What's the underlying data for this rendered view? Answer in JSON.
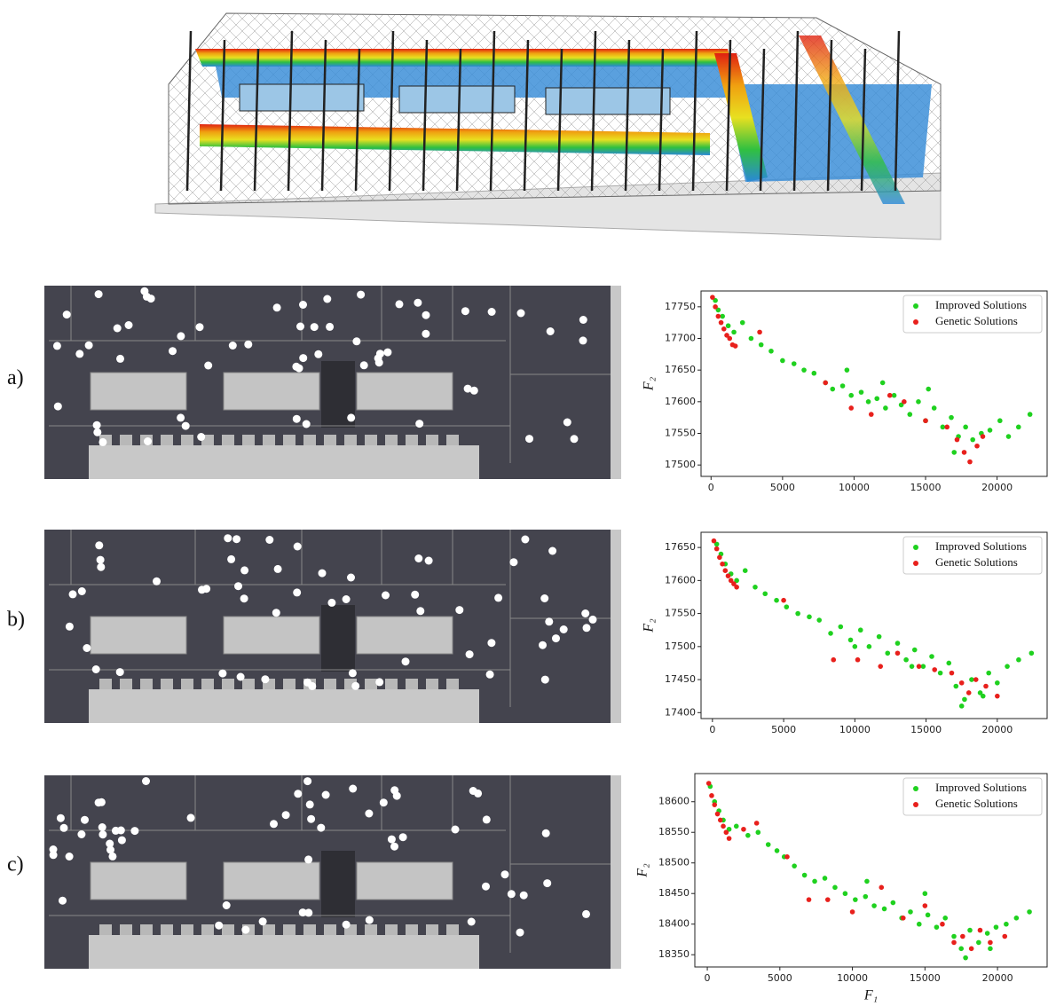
{
  "chart_data": [
    {
      "type": "scatter",
      "panel_label": "a)",
      "ylabel": "F₂",
      "xlim": [
        -700,
        23500
      ],
      "xticks": [
        0,
        5000,
        10000,
        15000,
        20000
      ],
      "ylim": [
        17482,
        17775
      ],
      "yticks": [
        17500,
        17550,
        17600,
        17650,
        17700,
        17750
      ],
      "legend": "upper right",
      "series": [
        {
          "name": "Improved Solutions",
          "color": "#1fd11f",
          "x": [
            300,
            500,
            800,
            1200,
            1600,
            2200,
            2800,
            3500,
            4200,
            5000,
            5800,
            6500,
            7200,
            8000,
            8500,
            9200,
            9800,
            10500,
            11000,
            11600,
            12200,
            12800,
            13300,
            13900,
            14500,
            15000,
            15600,
            16200,
            16800,
            17300,
            17800,
            18300,
            18900,
            19500,
            20200,
            20800,
            21500,
            22300,
            12000,
            15200,
            9500,
            17000
          ],
          "values": [
            17760,
            17745,
            17735,
            17720,
            17710,
            17725,
            17700,
            17690,
            17680,
            17665,
            17660,
            17650,
            17645,
            17630,
            17620,
            17625,
            17610,
            17615,
            17600,
            17605,
            17590,
            17610,
            17595,
            17580,
            17600,
            17570,
            17590,
            17560,
            17575,
            17545,
            17560,
            17540,
            17550,
            17555,
            17570,
            17545,
            17560,
            17580,
            17630,
            17620,
            17650,
            17520
          ]
        },
        {
          "name": "Genetic Solutions",
          "color": "#e8201c",
          "x": [
            100,
            300,
            500,
            700,
            900,
            1100,
            1300,
            1500,
            1700,
            3400,
            8000,
            9800,
            11200,
            12500,
            13500,
            15000,
            16500,
            17200,
            17700,
            18100,
            18600,
            19000
          ],
          "values": [
            17765,
            17750,
            17735,
            17725,
            17715,
            17705,
            17700,
            17690,
            17688,
            17710,
            17630,
            17590,
            17580,
            17610,
            17600,
            17570,
            17560,
            17540,
            17520,
            17505,
            17530,
            17545
          ]
        }
      ]
    },
    {
      "type": "scatter",
      "panel_label": "b)",
      "ylabel": "F₂",
      "xlim": [
        -800,
        23500
      ],
      "xticks": [
        0,
        5000,
        10000,
        15000,
        20000
      ],
      "ylim": [
        17391,
        17673
      ],
      "yticks": [
        17400,
        17450,
        17500,
        17550,
        17600,
        17650
      ],
      "legend": "upper right",
      "series": [
        {
          "name": "Improved Solutions",
          "color": "#1fd11f",
          "x": [
            300,
            600,
            900,
            1300,
            1700,
            2300,
            3000,
            3700,
            4500,
            5200,
            6000,
            6800,
            7500,
            8300,
            9000,
            9700,
            10400,
            11000,
            11700,
            12300,
            13000,
            13600,
            14200,
            14800,
            15400,
            16000,
            16600,
            17100,
            17700,
            18200,
            18800,
            19400,
            20000,
            20700,
            21500,
            22400,
            10000,
            14000,
            17500,
            19000
          ],
          "values": [
            17655,
            17640,
            17625,
            17610,
            17600,
            17615,
            17590,
            17580,
            17570,
            17560,
            17550,
            17545,
            17540,
            17520,
            17530,
            17510,
            17525,
            17500,
            17515,
            17490,
            17505,
            17480,
            17495,
            17470,
            17485,
            17460,
            17475,
            17440,
            17420,
            17450,
            17430,
            17460,
            17445,
            17470,
            17480,
            17490,
            17500,
            17470,
            17410,
            17425
          ]
        },
        {
          "name": "Genetic Solutions",
          "color": "#e8201c",
          "x": [
            100,
            300,
            500,
            700,
            900,
            1100,
            1300,
            1500,
            1700,
            5000,
            8500,
            10200,
            11800,
            13000,
            14500,
            15600,
            16800,
            17500,
            18000,
            18500,
            19200,
            20000
          ],
          "values": [
            17660,
            17648,
            17635,
            17625,
            17615,
            17607,
            17600,
            17595,
            17590,
            17570,
            17480,
            17480,
            17470,
            17490,
            17470,
            17465,
            17460,
            17445,
            17430,
            17450,
            17440,
            17425
          ]
        }
      ]
    },
    {
      "type": "scatter",
      "panel_label": "c)",
      "ylabel": "F₂",
      "xlabel": "F₁",
      "xlim": [
        -860,
        23420
      ],
      "xticks": [
        0,
        5000,
        10000,
        15000,
        20000
      ],
      "ylim": [
        18330,
        18646
      ],
      "yticks": [
        18350,
        18400,
        18450,
        18500,
        18550,
        18600
      ],
      "legend": "upper right",
      "series": [
        {
          "name": "Improved Solutions",
          "color": "#1fd11f",
          "x": [
            200,
            500,
            800,
            1100,
            1500,
            2000,
            2800,
            3500,
            4200,
            4800,
            5300,
            6000,
            6700,
            7400,
            8100,
            8800,
            9500,
            10200,
            10900,
            11500,
            12200,
            12800,
            13400,
            14000,
            14600,
            15200,
            15800,
            16400,
            17000,
            17500,
            18100,
            18700,
            19300,
            19900,
            20600,
            21300,
            22200,
            11000,
            15000,
            17800,
            19500
          ],
          "values": [
            18625,
            18600,
            18585,
            18570,
            18555,
            18560,
            18545,
            18550,
            18530,
            18520,
            18510,
            18495,
            18480,
            18470,
            18475,
            18460,
            18450,
            18440,
            18445,
            18430,
            18425,
            18435,
            18410,
            18420,
            18400,
            18415,
            18395,
            18410,
            18380,
            18360,
            18390,
            18370,
            18385,
            18395,
            18400,
            18410,
            18420,
            18470,
            18450,
            18345,
            18360
          ]
        },
        {
          "name": "Genetic Solutions",
          "color": "#e8201c",
          "x": [
            100,
            300,
            500,
            700,
            900,
            1100,
            1300,
            1500,
            2500,
            3400,
            5500,
            7000,
            8300,
            10000,
            12000,
            13500,
            15000,
            16200,
            17000,
            17600,
            18200,
            18800,
            19500,
            20500
          ],
          "values": [
            18630,
            18610,
            18595,
            18580,
            18570,
            18560,
            18550,
            18540,
            18555,
            18565,
            18510,
            18440,
            18440,
            18420,
            18460,
            18410,
            18430,
            18400,
            18370,
            18380,
            18360,
            18390,
            18370,
            18380
          ]
        }
      ]
    }
  ]
}
